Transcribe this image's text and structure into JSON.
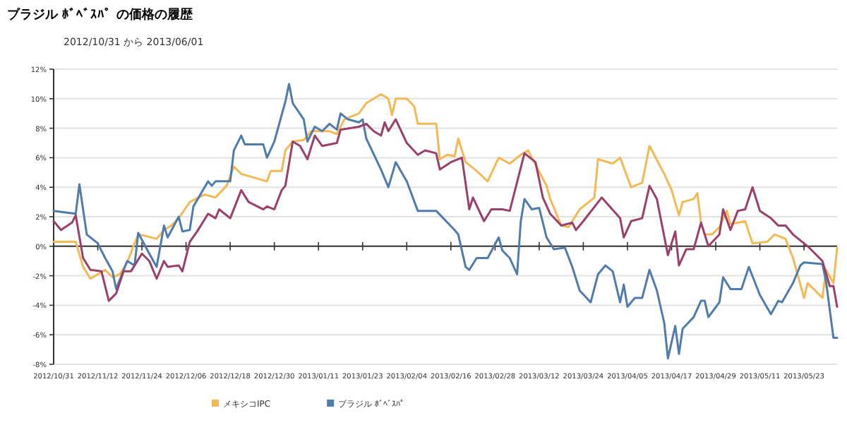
{
  "chart_data": {
    "type": "line",
    "title": "ブラジル ﾎﾞﾍﾞｽﾊﾟ の価格の履歴",
    "subtitle": "2012/10/31 から 2013/06/01",
    "xlim": [
      "2012-10-31",
      "2013-06-01"
    ],
    "xticks": [
      {
        "value": "2012-10-31",
        "label": "2012/10/31"
      },
      {
        "value": "2012-11-12",
        "label": "2012/11/12"
      },
      {
        "value": "2012-11-24",
        "label": "2012/11/24"
      },
      {
        "value": "2012-12-06",
        "label": "2012/12/06"
      },
      {
        "value": "2012-12-18",
        "label": "2012/12/18"
      },
      {
        "value": "2012-12-30",
        "label": "2012/12/30"
      },
      {
        "value": "2013-01-11",
        "label": "2013/01/11"
      },
      {
        "value": "2013-01-23",
        "label": "2013/01/23"
      },
      {
        "value": "2013-02-04",
        "label": "2013/02/04"
      },
      {
        "value": "2013-02-16",
        "label": "2013/02/16"
      },
      {
        "value": "2013-02-28",
        "label": "2013/02/28"
      },
      {
        "value": "2013-03-12",
        "label": "2013/03/12"
      },
      {
        "value": "2013-03-24",
        "label": "2013/03/24"
      },
      {
        "value": "2013-04-05",
        "label": "2013/04/05"
      },
      {
        "value": "2013-04-17",
        "label": "2013/04/17"
      },
      {
        "value": "2013-04-29",
        "label": "2013/04/29"
      },
      {
        "value": "2013-05-11",
        "label": "2013/05/11"
      },
      {
        "value": "2013-05-23",
        "label": "2013/05/23"
      }
    ],
    "ylim": [
      -8,
      12
    ],
    "yticks": [
      {
        "value": -8,
        "label": "-8%"
      },
      {
        "value": -6,
        "label": "-6%"
      },
      {
        "value": -4,
        "label": "-4%"
      },
      {
        "value": -2,
        "label": "-2%"
      },
      {
        "value": 0,
        "label": "0%"
      },
      {
        "value": 2,
        "label": "2%"
      },
      {
        "value": 4,
        "label": "4%"
      },
      {
        "value": 6,
        "label": "6%"
      },
      {
        "value": 8,
        "label": "8%"
      },
      {
        "value": 10,
        "label": "10%"
      },
      {
        "value": 12,
        "label": "12%"
      }
    ],
    "grid": "y",
    "legend": "bottom",
    "marker": "none",
    "line_style": "solid",
    "series": [
      {
        "name": "メキシコIPC",
        "color": "#f2b955",
        "x": [
          "2012-10-31",
          "2012-11-06",
          "2012-11-08",
          "2012-11-10",
          "2012-11-12",
          "2012-11-14",
          "2012-11-16",
          "2012-11-18",
          "2012-11-20",
          "2012-11-22",
          "2012-11-23",
          "2012-11-25",
          "2012-11-28",
          "2012-11-30",
          "2012-12-02",
          "2012-12-04",
          "2012-12-07",
          "2012-12-11",
          "2012-12-14",
          "2012-12-17",
          "2012-12-19",
          "2012-12-21",
          "2012-12-28",
          "2012-12-29",
          "2013-01-01",
          "2013-01-02",
          "2013-01-04",
          "2013-01-07",
          "2013-01-09",
          "2013-01-14",
          "2013-01-16",
          "2013-01-18",
          "2013-01-22",
          "2013-01-24",
          "2013-01-28",
          "2013-01-30",
          "2013-01-31",
          "2013-02-01",
          "2013-02-04",
          "2013-02-06",
          "2013-02-07",
          "2013-02-12",
          "2013-02-13",
          "2013-02-15",
          "2013-02-17",
          "2013-02-18",
          "2013-02-20",
          "2013-02-23",
          "2013-02-26",
          "2013-03-01",
          "2013-03-04",
          "2013-03-07",
          "2013-03-09",
          "2013-03-10",
          "2013-03-14",
          "2013-03-15",
          "2013-03-18",
          "2013-03-20",
          "2013-03-23",
          "2013-03-27",
          "2013-03-28",
          "2013-04-01",
          "2013-04-03",
          "2013-04-06",
          "2013-04-09",
          "2013-04-11",
          "2013-04-15",
          "2013-04-17",
          "2013-04-19",
          "2013-04-20",
          "2013-04-23",
          "2013-04-24",
          "2013-04-25",
          "2013-04-26",
          "2013-04-28",
          "2013-04-30",
          "2013-05-02",
          "2013-05-03",
          "2013-05-07",
          "2013-05-09",
          "2013-05-13",
          "2013-05-15",
          "2013-05-18",
          "2013-05-20",
          "2013-05-23",
          "2013-05-24",
          "2013-05-28",
          "2013-05-29",
          "2013-05-31",
          "2013-06-01"
        ],
        "values": [
          0.3,
          0.3,
          -1.4,
          -2.2,
          -1.9,
          -1.6,
          -2.1,
          -1.9,
          -1.1,
          0.2,
          0.8,
          0.7,
          0.5,
          1.1,
          1.4,
          1.9,
          3.0,
          3.5,
          3.3,
          4.1,
          5.4,
          4.9,
          4.4,
          5.1,
          5.1,
          6.5,
          7.1,
          7.2,
          7.8,
          7.8,
          7.6,
          8.6,
          9.0,
          9.7,
          10.3,
          10.0,
          8.9,
          10.0,
          10.0,
          9.5,
          8.3,
          8.3,
          5.9,
          6.2,
          6.1,
          7.3,
          5.7,
          5.1,
          4.4,
          6.0,
          5.6,
          6.2,
          6.5,
          6.0,
          4.1,
          3.2,
          1.4,
          1.3,
          2.5,
          3.3,
          5.9,
          5.6,
          6.0,
          4.0,
          4.3,
          6.8,
          4.9,
          3.8,
          2.1,
          3.0,
          3.2,
          3.6,
          1.6,
          0.8,
          0.8,
          1.3,
          2.4,
          1.5,
          1.7,
          0.2,
          0.3,
          0.8,
          0.5,
          -0.8,
          -3.5,
          -2.5,
          -3.5,
          -1.6,
          -2.5,
          -0.1
        ]
      },
      {
        "name": "ブラジル ﾎﾞﾍﾞｽﾊﾟ",
        "color": "#4f7cac",
        "x": [
          "2012-10-31",
          "2012-11-06",
          "2012-11-07",
          "2012-11-09",
          "2012-11-12",
          "2012-11-14",
          "2012-11-16",
          "2012-11-17",
          "2012-11-20",
          "2012-11-22",
          "2012-11-23",
          "2012-11-26",
          "2012-11-28",
          "2012-11-30",
          "2012-12-01",
          "2012-12-04",
          "2012-12-05",
          "2012-12-07",
          "2012-12-08",
          "2012-12-12",
          "2012-12-13",
          "2012-12-14",
          "2012-12-18",
          "2012-12-19",
          "2012-12-21",
          "2012-12-22",
          "2012-12-27",
          "2012-12-28",
          "2012-12-30",
          "2013-01-02",
          "2013-01-03",
          "2013-01-04",
          "2013-01-07",
          "2013-01-08",
          "2013-01-10",
          "2013-01-12",
          "2013-01-14",
          "2013-01-16",
          "2013-01-17",
          "2013-01-19",
          "2013-01-22",
          "2013-01-23",
          "2013-01-24",
          "2013-01-28",
          "2013-01-30",
          "2013-02-01",
          "2013-02-04",
          "2013-02-07",
          "2013-02-12",
          "2013-02-17",
          "2013-02-18",
          "2013-02-20",
          "2013-02-21",
          "2013-02-23",
          "2013-02-26",
          "2013-03-01",
          "2013-03-02",
          "2013-03-04",
          "2013-03-06",
          "2013-03-07",
          "2013-03-08",
          "2013-03-10",
          "2013-03-12",
          "2013-03-14",
          "2013-03-16",
          "2013-03-19",
          "2013-03-21",
          "2013-03-23",
          "2013-03-26",
          "2013-03-28",
          "2013-03-30",
          "2013-04-01",
          "2013-04-03",
          "2013-04-04",
          "2013-04-05",
          "2013-04-07",
          "2013-04-09",
          "2013-04-11",
          "2013-04-13",
          "2013-04-15",
          "2013-04-16",
          "2013-04-18",
          "2013-04-19",
          "2013-04-20",
          "2013-04-23",
          "2013-04-25",
          "2013-04-26",
          "2013-04-27",
          "2013-04-30",
          "2013-05-01",
          "2013-05-03",
          "2013-05-06",
          "2013-05-08",
          "2013-05-11",
          "2013-05-14",
          "2013-05-16",
          "2013-05-17",
          "2013-05-20",
          "2013-05-22",
          "2013-05-23",
          "2013-05-28",
          "2013-05-29",
          "2013-05-31",
          "2013-06-01"
        ],
        "values": [
          2.4,
          2.2,
          4.2,
          0.8,
          0.2,
          -0.8,
          -1.7,
          -2.9,
          -1.0,
          -1.3,
          0.9,
          -0.5,
          -1.4,
          1.4,
          0.6,
          2.0,
          1.0,
          1.1,
          2.7,
          4.4,
          4.1,
          4.4,
          4.4,
          6.5,
          7.5,
          6.9,
          6.9,
          6.0,
          7.1,
          9.8,
          11.0,
          9.7,
          8.6,
          7.1,
          8.1,
          7.8,
          8.3,
          7.9,
          9.0,
          8.6,
          8.4,
          8.6,
          7.3,
          5.2,
          4.0,
          5.7,
          4.4,
          2.4,
          2.4,
          1.1,
          0.8,
          -1.4,
          -1.6,
          -0.8,
          -0.8,
          0.6,
          -0.3,
          -0.8,
          -1.9,
          1.7,
          3.2,
          2.5,
          2.6,
          0.6,
          -0.2,
          -0.1,
          -1.4,
          -3.0,
          -3.8,
          -1.9,
          -1.3,
          -1.7,
          -3.8,
          -2.6,
          -4.1,
          -3.5,
          -3.5,
          -1.6,
          -3.0,
          -5.2,
          -7.6,
          -5.4,
          -7.3,
          -5.6,
          -4.8,
          -3.7,
          -3.7,
          -4.8,
          -3.8,
          -2.1,
          -2.9,
          -2.9,
          -1.4,
          -3.3,
          -4.6,
          -3.7,
          -3.8,
          -2.5,
          -1.3,
          -1.1,
          -1.2,
          -2.4,
          -6.2,
          -6.2
        ]
      },
      {
        "color": "#9b3f6b",
        "x": [
          "2012-10-31",
          "2012-11-02",
          "2012-11-05",
          "2012-11-06",
          "2012-11-08",
          "2012-11-10",
          "2012-11-13",
          "2012-11-15",
          "2012-11-17",
          "2012-11-19",
          "2012-11-21",
          "2012-11-24",
          "2012-11-26",
          "2012-11-28",
          "2012-11-30",
          "2012-12-01",
          "2012-12-04",
          "2012-12-05",
          "2012-12-07",
          "2012-12-09",
          "2012-12-12",
          "2012-12-14",
          "2012-12-15",
          "2012-12-18",
          "2012-12-21",
          "2012-12-23",
          "2012-12-27",
          "2012-12-28",
          "2012-12-30",
          "2013-01-01",
          "2013-01-02",
          "2013-01-04",
          "2013-01-06",
          "2013-01-08",
          "2013-01-10",
          "2013-01-12",
          "2013-01-16",
          "2013-01-17",
          "2013-01-22",
          "2013-01-24",
          "2013-01-26",
          "2013-01-28",
          "2013-01-29",
          "2013-01-30",
          "2013-02-01",
          "2013-02-04",
          "2013-02-07",
          "2013-02-09",
          "2013-02-12",
          "2013-02-13",
          "2013-02-16",
          "2013-02-19",
          "2013-02-21",
          "2013-02-22",
          "2013-02-25",
          "2013-02-27",
          "2013-03-02",
          "2013-03-04",
          "2013-03-08",
          "2013-03-11",
          "2013-03-13",
          "2013-03-15",
          "2013-03-18",
          "2013-03-21",
          "2013-03-22",
          "2013-03-24",
          "2013-03-29",
          "2013-04-03",
          "2013-04-04",
          "2013-04-06",
          "2013-04-09",
          "2013-04-11",
          "2013-04-13",
          "2013-04-16",
          "2013-04-18",
          "2013-04-19",
          "2013-04-21",
          "2013-04-23",
          "2013-04-25",
          "2013-04-27",
          "2013-04-30",
          "2013-05-01",
          "2013-05-03",
          "2013-05-05",
          "2013-05-07",
          "2013-05-09",
          "2013-05-11",
          "2013-05-14",
          "2013-05-16",
          "2013-05-18",
          "2013-05-20",
          "2013-05-24",
          "2013-05-26",
          "2013-05-28",
          "2013-05-30",
          "2013-05-31",
          "2013-06-01"
        ],
        "values": [
          1.7,
          1.1,
          1.6,
          2.1,
          -0.8,
          -1.6,
          -1.7,
          -3.7,
          -3.2,
          -1.7,
          -1.7,
          -0.5,
          -1.0,
          -2.2,
          -1.0,
          -1.4,
          -1.3,
          -1.7,
          0.3,
          1.0,
          2.2,
          1.9,
          2.5,
          1.9,
          3.8,
          3.0,
          2.5,
          2.7,
          2.5,
          3.8,
          4.1,
          7.1,
          6.8,
          5.9,
          7.5,
          6.8,
          7.0,
          7.9,
          8.1,
          8.3,
          7.8,
          7.5,
          8.4,
          7.8,
          8.6,
          7.0,
          6.2,
          6.5,
          6.3,
          5.2,
          5.7,
          6.0,
          2.5,
          3.3,
          1.7,
          2.5,
          2.5,
          2.4,
          6.3,
          5.7,
          3.3,
          2.2,
          1.4,
          1.6,
          1.1,
          1.7,
          3.3,
          1.9,
          0.6,
          1.7,
          1.9,
          4.1,
          3.2,
          -0.6,
          1.0,
          -1.3,
          -0.2,
          -0.2,
          1.6,
          0,
          0.8,
          2.5,
          1.1,
          2.4,
          2.5,
          4.0,
          2.4,
          1.9,
          1.4,
          1.4,
          0.8,
          0,
          -0.5,
          -1.0,
          -2.7,
          -2.7,
          -4.1
        ]
      }
    ]
  }
}
